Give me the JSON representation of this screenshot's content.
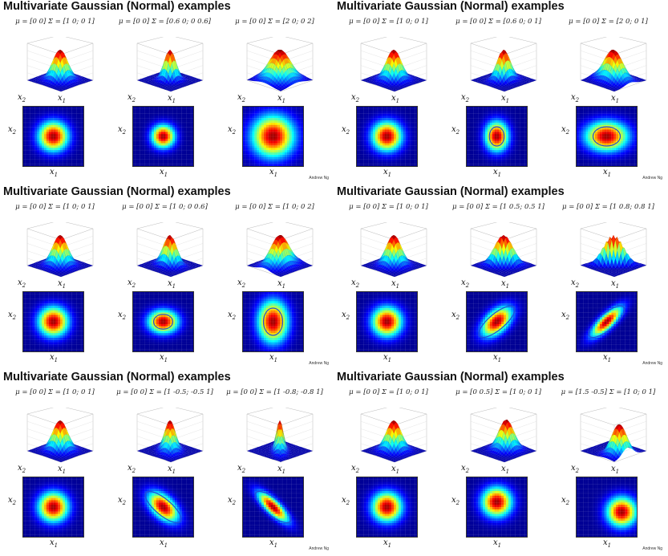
{
  "panels": [
    {
      "title": "Multivariate Gaussian (Normal) examples",
      "credit": "Andrew Ng",
      "examples": [
        {
          "formula": "μ = [0 0] Σ = [1 0; 0 1]",
          "sx": 1.0,
          "sy": 1.0,
          "rho": 0.0,
          "mx": 0.0,
          "my": 0.0
        },
        {
          "formula": "μ = [0 0] Σ = [0.6 0; 0 0.6]",
          "sx": 0.6,
          "sy": 0.6,
          "rho": 0.0,
          "mx": 0.0,
          "my": 0.0
        },
        {
          "formula": "μ = [0 0] Σ = [2 0; 0 2]",
          "sx": 2.0,
          "sy": 2.0,
          "rho": 0.0,
          "mx": 0.0,
          "my": 0.0
        }
      ]
    },
    {
      "title": "Multivariate Gaussian (Normal) examples",
      "credit": "Andrew Ng",
      "examples": [
        {
          "formula": "μ = [0 0] Σ = [1 0; 0 1]",
          "sx": 1.0,
          "sy": 1.0,
          "rho": 0.0,
          "mx": 0.0,
          "my": 0.0
        },
        {
          "formula": "μ = [0 0] Σ = [0.6 0; 0 1]",
          "sx": 0.6,
          "sy": 1.0,
          "rho": 0.0,
          "mx": 0.0,
          "my": 0.0
        },
        {
          "formula": "μ = [0 0] Σ = [2 0; 0 1]",
          "sx": 2.0,
          "sy": 1.0,
          "rho": 0.0,
          "mx": 0.0,
          "my": 0.0
        }
      ]
    },
    {
      "title": "Multivariate Gaussian (Normal) examples",
      "credit": "Andrew Ng",
      "examples": [
        {
          "formula": "μ = [0 0] Σ = [1 0; 0 1]",
          "sx": 1.0,
          "sy": 1.0,
          "rho": 0.0,
          "mx": 0.0,
          "my": 0.0
        },
        {
          "formula": "μ = [0 0] Σ = [1 0; 0 0.6]",
          "sx": 1.0,
          "sy": 0.6,
          "rho": 0.0,
          "mx": 0.0,
          "my": 0.0
        },
        {
          "formula": "μ = [0 0] Σ = [1 0; 0 2]",
          "sx": 1.0,
          "sy": 2.0,
          "rho": 0.0,
          "mx": 0.0,
          "my": 0.0
        }
      ]
    },
    {
      "title": "Multivariate Gaussian (Normal) examples",
      "credit": "Andrew Ng",
      "examples": [
        {
          "formula": "μ = [0 0] Σ = [1 0; 0 1]",
          "sx": 1.0,
          "sy": 1.0,
          "rho": 0.0,
          "mx": 0.0,
          "my": 0.0
        },
        {
          "formula": "μ = [0 0] Σ = [1 0.5; 0.5 1]",
          "sx": 1.0,
          "sy": 1.0,
          "rho": 0.5,
          "mx": 0.0,
          "my": 0.0
        },
        {
          "formula": "μ = [0 0] Σ = [1 0.8; 0.8 1]",
          "sx": 1.0,
          "sy": 1.0,
          "rho": 0.8,
          "mx": 0.0,
          "my": 0.0
        }
      ]
    },
    {
      "title": "Multivariate Gaussian (Normal) examples",
      "credit": "Andrew Ng",
      "examples": [
        {
          "formula": "μ = [0 0] Σ = [1 0; 0 1]",
          "sx": 1.0,
          "sy": 1.0,
          "rho": 0.0,
          "mx": 0.0,
          "my": 0.0
        },
        {
          "formula": "μ = [0 0] Σ = [1 -0.5; -0.5 1]",
          "sx": 1.0,
          "sy": 1.0,
          "rho": -0.5,
          "mx": 0.0,
          "my": 0.0
        },
        {
          "formula": "μ = [0 0] Σ = [1 -0.8; -0.8 1]",
          "sx": 1.0,
          "sy": 1.0,
          "rho": -0.8,
          "mx": 0.0,
          "my": 0.0
        }
      ]
    },
    {
      "title": "Multivariate Gaussian (Normal) examples",
      "credit": "Andrew Ng",
      "examples": [
        {
          "formula": "μ = [0 0] Σ = [1 0; 0 1]",
          "sx": 1.0,
          "sy": 1.0,
          "rho": 0.0,
          "mx": 0.0,
          "my": 0.0
        },
        {
          "formula": "μ = [0 0.5] Σ = [1 0; 0 1]",
          "sx": 1.0,
          "sy": 1.0,
          "rho": 0.0,
          "mx": 0.0,
          "my": 0.5
        },
        {
          "formula": "μ = [1.5 -0.5] Σ = [1 0; 0 1]",
          "sx": 1.0,
          "sy": 1.0,
          "rho": 0.0,
          "mx": 1.5,
          "my": -0.5
        }
      ]
    }
  ],
  "labels": {
    "x1": "x",
    "x2": "x",
    "sub1": "1",
    "sub2": "2"
  },
  "colors": {
    "ink": "#1f4fd8",
    "background": "#ffffff",
    "heat_low": "#00007f",
    "heat_high": "#7f0000"
  }
}
